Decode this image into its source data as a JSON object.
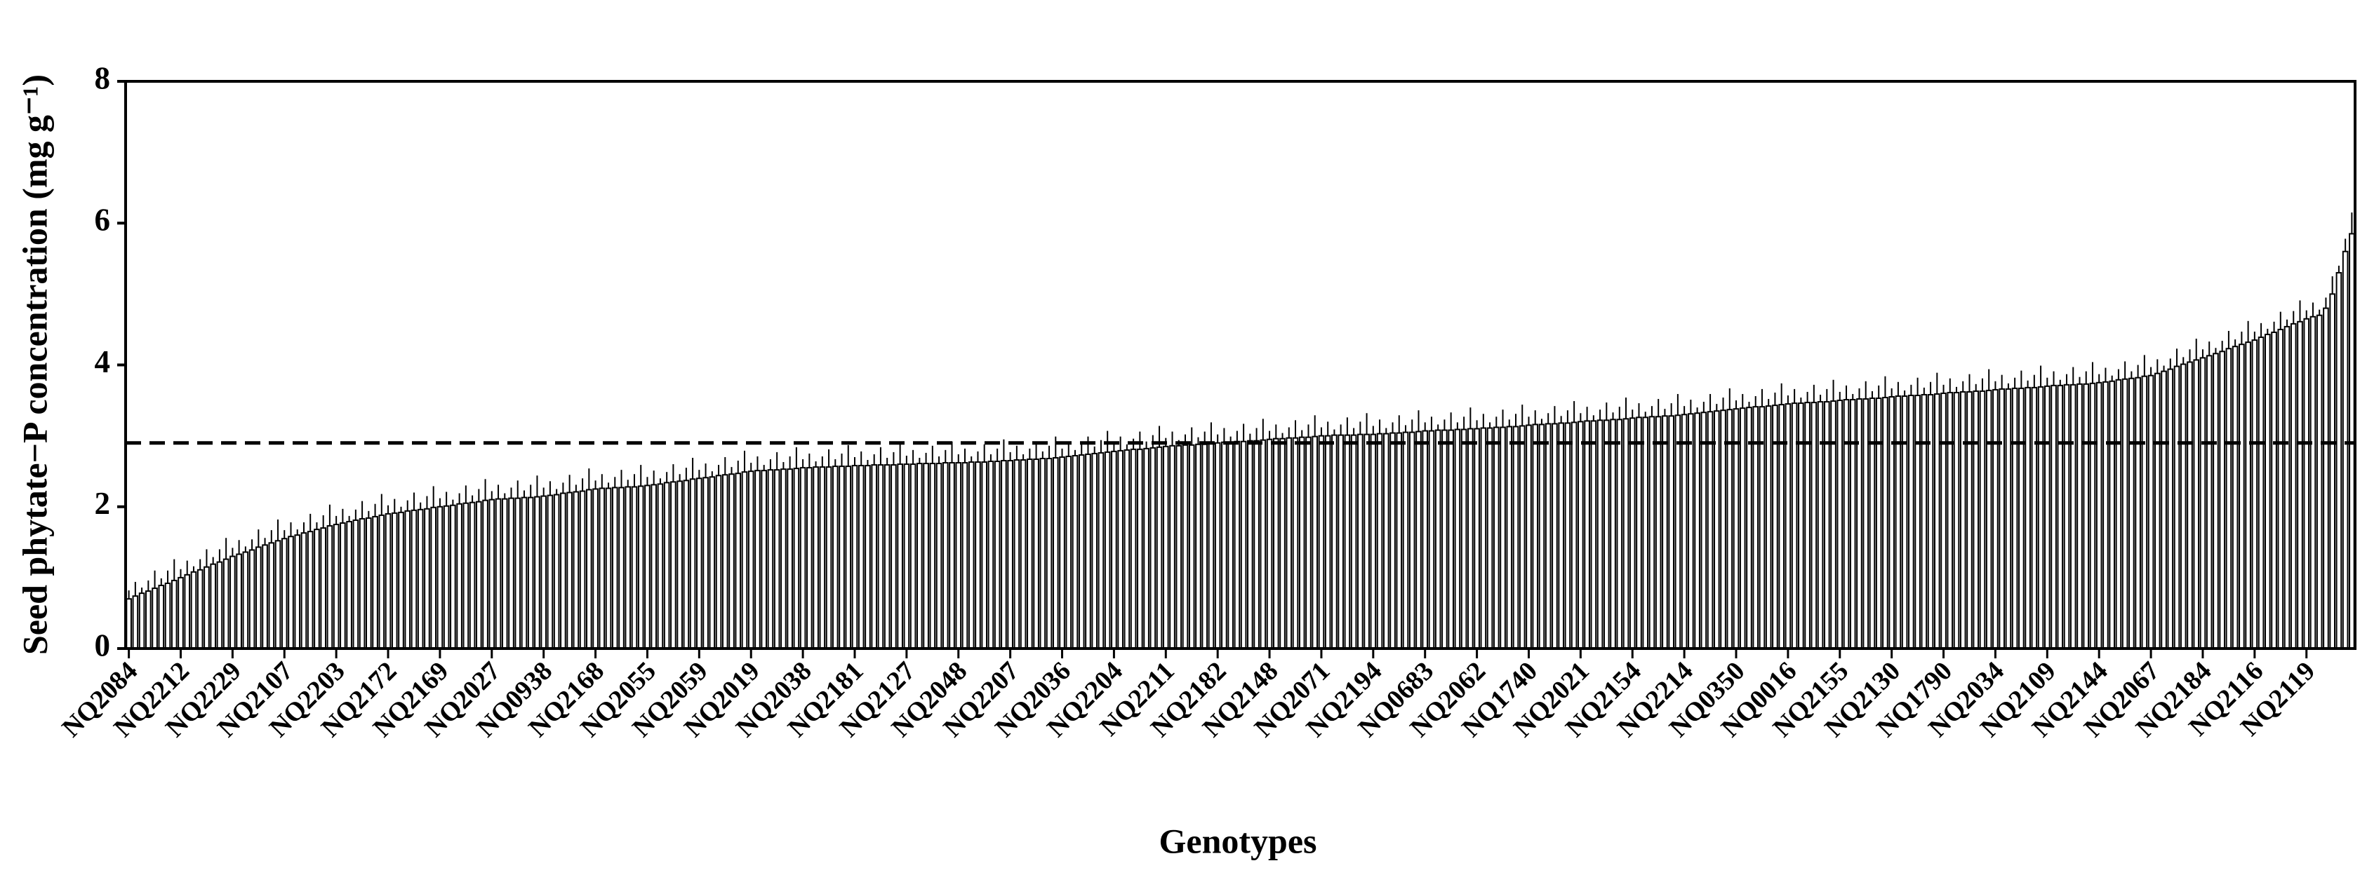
{
  "chart_data": {
    "type": "bar",
    "y_label": "Seed phytate−P concentration (mg g⁻¹)",
    "x_label": "Genotypes",
    "color": "#ffffff",
    "edge_color": "#000000",
    "reference_line": 2.9,
    "ylim": [
      0,
      8
    ],
    "yticks": [
      0,
      2,
      4,
      6,
      8
    ],
    "categories": [
      "NQ2084",
      null,
      null,
      null,
      null,
      null,
      null,
      null,
      "NQ2212",
      null,
      null,
      null,
      null,
      null,
      null,
      null,
      "NQ2229",
      null,
      null,
      null,
      null,
      null,
      null,
      null,
      "NQ2107",
      null,
      null,
      null,
      null,
      null,
      null,
      null,
      "NQ2203",
      null,
      null,
      null,
      null,
      null,
      null,
      null,
      "NQ2172",
      null,
      null,
      null,
      null,
      null,
      null,
      null,
      "NQ2169",
      null,
      null,
      null,
      null,
      null,
      null,
      null,
      "NQ2027",
      null,
      null,
      null,
      null,
      null,
      null,
      null,
      "NQ0938",
      null,
      null,
      null,
      null,
      null,
      null,
      null,
      "NQ2168",
      null,
      null,
      null,
      null,
      null,
      null,
      null,
      "NQ2055",
      null,
      null,
      null,
      null,
      null,
      null,
      null,
      "NQ2059",
      null,
      null,
      null,
      null,
      null,
      null,
      null,
      "NQ2019",
      null,
      null,
      null,
      null,
      null,
      null,
      null,
      "NQ2038",
      null,
      null,
      null,
      null,
      null,
      null,
      null,
      "NQ2181",
      null,
      null,
      null,
      null,
      null,
      null,
      null,
      "NQ2127",
      null,
      null,
      null,
      null,
      null,
      null,
      null,
      "NQ2048",
      null,
      null,
      null,
      null,
      null,
      null,
      null,
      "NQ2207",
      null,
      null,
      null,
      null,
      null,
      null,
      null,
      "NQ2036",
      null,
      null,
      null,
      null,
      null,
      null,
      null,
      "NQ2204",
      null,
      null,
      null,
      null,
      null,
      null,
      null,
      "NQ2211",
      null,
      null,
      null,
      null,
      null,
      null,
      null,
      "NQ2182",
      null,
      null,
      null,
      null,
      null,
      null,
      null,
      "NQ2148",
      null,
      null,
      null,
      null,
      null,
      null,
      null,
      "NQ2071",
      null,
      null,
      null,
      null,
      null,
      null,
      null,
      "NQ2194",
      null,
      null,
      null,
      null,
      null,
      null,
      null,
      "NQ0683",
      null,
      null,
      null,
      null,
      null,
      null,
      null,
      "NQ2062",
      null,
      null,
      null,
      null,
      null,
      null,
      null,
      "NQ1740",
      null,
      null,
      null,
      null,
      null,
      null,
      null,
      "NQ2021",
      null,
      null,
      null,
      null,
      null,
      null,
      null,
      "NQ2154",
      null,
      null,
      null,
      null,
      null,
      null,
      null,
      "NQ2214",
      null,
      null,
      null,
      null,
      null,
      null,
      null,
      "NQ0350",
      null,
      null,
      null,
      null,
      null,
      null,
      null,
      "NQ0016",
      null,
      null,
      null,
      null,
      null,
      null,
      null,
      "NQ2155",
      null,
      null,
      null,
      null,
      null,
      null,
      null,
      "NQ2130",
      null,
      null,
      null,
      null,
      null,
      null,
      null,
      "NQ1790",
      null,
      null,
      null,
      null,
      null,
      null,
      null,
      "NQ2034",
      null,
      null,
      null,
      null,
      null,
      null,
      null,
      "NQ2109",
      null,
      null,
      null,
      null,
      null,
      null,
      null,
      "NQ2144",
      null,
      null,
      null,
      null,
      null,
      null,
      null,
      "NQ2067",
      null,
      null,
      null,
      null,
      null,
      null,
      null,
      "NQ2184",
      null,
      null,
      null,
      null,
      null,
      null,
      null,
      "NQ2116",
      null,
      null,
      null,
      null,
      null,
      null,
      null,
      "NQ2119",
      null,
      null,
      null,
      null,
      null,
      null,
      null
    ],
    "values": [
      0.7,
      0.74,
      0.78,
      0.81,
      0.85,
      0.89,
      0.92,
      0.96,
      1.0,
      1.04,
      1.08,
      1.11,
      1.15,
      1.19,
      1.22,
      1.26,
      1.3,
      1.33,
      1.36,
      1.39,
      1.43,
      1.46,
      1.49,
      1.52,
      1.55,
      1.58,
      1.6,
      1.63,
      1.65,
      1.68,
      1.7,
      1.73,
      1.75,
      1.77,
      1.79,
      1.81,
      1.83,
      1.84,
      1.86,
      1.88,
      1.9,
      1.91,
      1.92,
      1.94,
      1.95,
      1.96,
      1.97,
      1.99,
      2.0,
      2.01,
      2.02,
      2.04,
      2.05,
      2.06,
      2.07,
      2.09,
      2.1,
      2.11,
      2.11,
      2.12,
      2.12,
      2.13,
      2.13,
      2.14,
      2.15,
      2.16,
      2.17,
      2.19,
      2.2,
      2.21,
      2.22,
      2.24,
      2.25,
      2.26,
      2.26,
      2.27,
      2.27,
      2.28,
      2.28,
      2.29,
      2.3,
      2.31,
      2.32,
      2.34,
      2.35,
      2.36,
      2.37,
      2.39,
      2.4,
      2.41,
      2.42,
      2.44,
      2.45,
      2.46,
      2.47,
      2.49,
      2.5,
      2.51,
      2.51,
      2.52,
      2.52,
      2.53,
      2.53,
      2.54,
      2.55,
      2.55,
      2.56,
      2.56,
      2.56,
      2.57,
      2.57,
      2.57,
      2.58,
      2.58,
      2.58,
      2.59,
      2.59,
      2.59,
      2.59,
      2.6,
      2.6,
      2.6,
      2.61,
      2.61,
      2.61,
      2.61,
      2.62,
      2.62,
      2.62,
      2.62,
      2.63,
      2.63,
      2.63,
      2.64,
      2.64,
      2.65,
      2.65,
      2.66,
      2.66,
      2.67,
      2.67,
      2.68,
      2.68,
      2.69,
      2.7,
      2.71,
      2.72,
      2.73,
      2.74,
      2.75,
      2.76,
      2.77,
      2.78,
      2.79,
      2.8,
      2.81,
      2.81,
      2.82,
      2.83,
      2.84,
      2.85,
      2.86,
      2.86,
      2.87,
      2.87,
      2.88,
      2.88,
      2.89,
      2.9,
      2.91,
      2.91,
      2.92,
      2.92,
      2.93,
      2.93,
      2.94,
      2.95,
      2.96,
      2.96,
      2.97,
      2.97,
      2.98,
      2.98,
      2.99,
      3.0,
      3.0,
      3.01,
      3.01,
      3.01,
      3.01,
      3.02,
      3.02,
      3.02,
      3.03,
      3.03,
      3.04,
      3.04,
      3.05,
      3.05,
      3.06,
      3.07,
      3.07,
      3.08,
      3.08,
      3.08,
      3.09,
      3.09,
      3.1,
      3.1,
      3.11,
      3.11,
      3.12,
      3.12,
      3.13,
      3.13,
      3.14,
      3.15,
      3.16,
      3.16,
      3.17,
      3.17,
      3.18,
      3.18,
      3.19,
      3.2,
      3.21,
      3.21,
      3.22,
      3.22,
      3.23,
      3.23,
      3.24,
      3.25,
      3.26,
      3.26,
      3.27,
      3.27,
      3.28,
      3.28,
      3.29,
      3.3,
      3.31,
      3.32,
      3.33,
      3.34,
      3.35,
      3.36,
      3.37,
      3.38,
      3.39,
      3.4,
      3.41,
      3.41,
      3.42,
      3.43,
      3.44,
      3.45,
      3.46,
      3.46,
      3.47,
      3.47,
      3.48,
      3.48,
      3.49,
      3.5,
      3.51,
      3.51,
      3.52,
      3.52,
      3.53,
      3.53,
      3.54,
      3.55,
      3.56,
      3.56,
      3.57,
      3.57,
      3.58,
      3.58,
      3.59,
      3.6,
      3.61,
      3.61,
      3.62,
      3.62,
      3.63,
      3.63,
      3.64,
      3.65,
      3.66,
      3.66,
      3.67,
      3.67,
      3.68,
      3.68,
      3.69,
      3.7,
      3.71,
      3.71,
      3.72,
      3.72,
      3.73,
      3.73,
      3.74,
      3.75,
      3.76,
      3.77,
      3.79,
      3.8,
      3.81,
      3.82,
      3.84,
      3.85,
      3.88,
      3.91,
      3.94,
      3.98,
      4.01,
      4.04,
      4.07,
      4.1,
      4.13,
      4.16,
      4.19,
      4.23,
      4.26,
      4.29,
      4.32,
      4.35,
      4.39,
      4.43,
      4.46,
      4.5,
      4.54,
      4.58,
      4.61,
      4.65,
      4.68,
      4.7,
      4.8,
      5.0,
      5.3,
      5.6,
      5.85
    ],
    "errors": [
      0.12,
      0.2,
      0.08,
      0.15,
      0.25,
      0.1,
      0.18,
      0.3,
      0.12,
      0.2,
      0.08,
      0.15,
      0.25,
      0.1,
      0.18,
      0.3,
      0.12,
      0.2,
      0.08,
      0.15,
      0.25,
      0.1,
      0.18,
      0.3,
      0.12,
      0.2,
      0.08,
      0.15,
      0.25,
      0.1,
      0.18,
      0.3,
      0.12,
      0.2,
      0.08,
      0.15,
      0.25,
      0.1,
      0.18,
      0.3,
      0.12,
      0.2,
      0.08,
      0.15,
      0.25,
      0.1,
      0.18,
      0.3,
      0.12,
      0.2,
      0.08,
      0.15,
      0.25,
      0.1,
      0.18,
      0.3,
      0.12,
      0.2,
      0.08,
      0.15,
      0.25,
      0.1,
      0.18,
      0.3,
      0.12,
      0.2,
      0.08,
      0.15,
      0.25,
      0.1,
      0.18,
      0.3,
      0.12,
      0.2,
      0.08,
      0.15,
      0.25,
      0.1,
      0.18,
      0.3,
      0.12,
      0.2,
      0.08,
      0.15,
      0.25,
      0.1,
      0.18,
      0.3,
      0.12,
      0.2,
      0.08,
      0.15,
      0.25,
      0.1,
      0.18,
      0.3,
      0.12,
      0.2,
      0.08,
      0.15,
      0.25,
      0.1,
      0.18,
      0.3,
      0.12,
      0.2,
      0.08,
      0.15,
      0.25,
      0.1,
      0.18,
      0.3,
      0.12,
      0.2,
      0.08,
      0.15,
      0.25,
      0.1,
      0.18,
      0.3,
      0.12,
      0.2,
      0.08,
      0.15,
      0.25,
      0.1,
      0.18,
      0.3,
      0.12,
      0.2,
      0.08,
      0.15,
      0.25,
      0.1,
      0.18,
      0.3,
      0.12,
      0.2,
      0.08,
      0.15,
      0.25,
      0.1,
      0.18,
      0.3,
      0.12,
      0.2,
      0.08,
      0.15,
      0.25,
      0.1,
      0.18,
      0.3,
      0.12,
      0.2,
      0.08,
      0.15,
      0.25,
      0.1,
      0.18,
      0.3,
      0.12,
      0.2,
      0.08,
      0.15,
      0.25,
      0.1,
      0.18,
      0.3,
      0.12,
      0.2,
      0.08,
      0.15,
      0.25,
      0.1,
      0.18,
      0.3,
      0.12,
      0.2,
      0.08,
      0.15,
      0.25,
      0.1,
      0.18,
      0.3,
      0.12,
      0.2,
      0.08,
      0.15,
      0.25,
      0.1,
      0.18,
      0.3,
      0.12,
      0.2,
      0.08,
      0.15,
      0.25,
      0.1,
      0.18,
      0.3,
      0.12,
      0.2,
      0.08,
      0.15,
      0.25,
      0.1,
      0.18,
      0.3,
      0.12,
      0.2,
      0.08,
      0.15,
      0.25,
      0.1,
      0.18,
      0.3,
      0.12,
      0.2,
      0.08,
      0.15,
      0.25,
      0.1,
      0.18,
      0.3,
      0.12,
      0.2,
      0.08,
      0.15,
      0.25,
      0.1,
      0.18,
      0.3,
      0.12,
      0.2,
      0.08,
      0.15,
      0.25,
      0.1,
      0.18,
      0.3,
      0.12,
      0.2,
      0.08,
      0.15,
      0.25,
      0.1,
      0.18,
      0.3,
      0.12,
      0.2,
      0.08,
      0.15,
      0.25,
      0.1,
      0.18,
      0.3,
      0.12,
      0.2,
      0.08,
      0.15,
      0.25,
      0.1,
      0.18,
      0.3,
      0.12,
      0.2,
      0.08,
      0.15,
      0.25,
      0.1,
      0.18,
      0.3,
      0.12,
      0.2,
      0.08,
      0.15,
      0.25,
      0.1,
      0.18,
      0.3,
      0.12,
      0.2,
      0.08,
      0.15,
      0.25,
      0.1,
      0.18,
      0.3,
      0.12,
      0.2,
      0.08,
      0.15,
      0.25,
      0.1,
      0.18,
      0.3,
      0.12,
      0.2,
      0.08,
      0.15,
      0.25,
      0.1,
      0.18,
      0.3,
      0.12,
      0.2,
      0.08,
      0.15,
      0.25,
      0.1,
      0.18,
      0.3,
      0.12,
      0.2,
      0.08,
      0.15,
      0.25,
      0.1,
      0.18,
      0.3,
      0.12,
      0.2,
      0.08,
      0.15,
      0.25,
      0.1,
      0.18,
      0.3,
      0.12,
      0.2,
      0.08,
      0.15,
      0.25,
      0.1,
      0.18,
      0.3,
      0.12,
      0.2,
      0.08,
      0.15,
      0.25,
      0.1,
      0.18,
      0.3
    ]
  }
}
